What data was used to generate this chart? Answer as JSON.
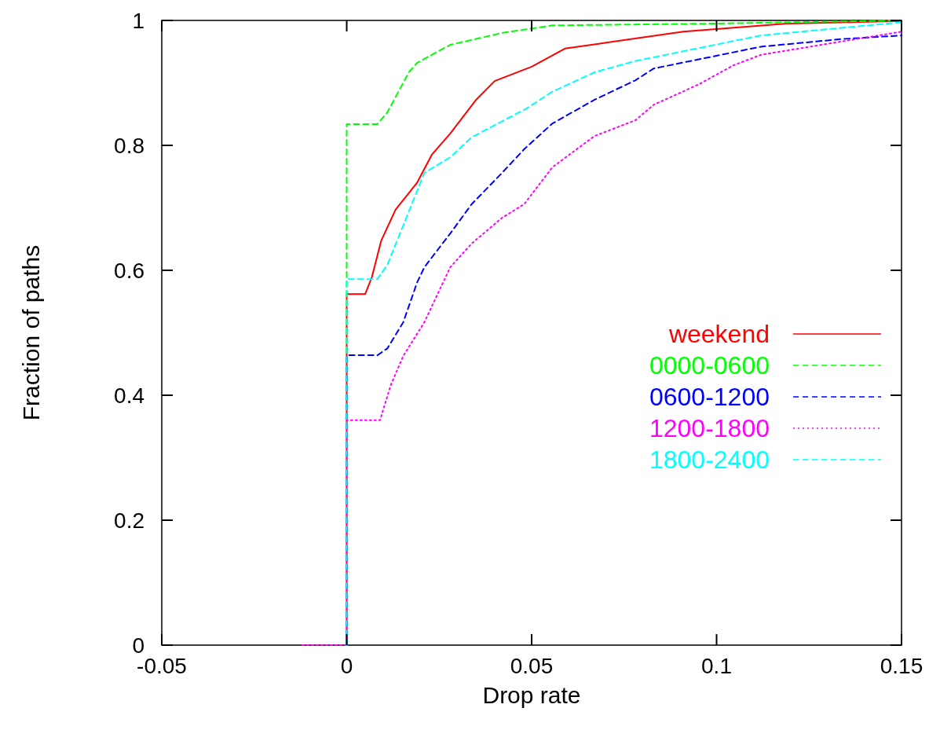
{
  "chart_data": {
    "type": "line",
    "xlabel": "Drop rate",
    "ylabel": "Fraction of paths",
    "xlim": [
      -0.05,
      0.15
    ],
    "xticks": [
      -0.05,
      0,
      0.05,
      0.1,
      0.15
    ],
    "ylim": [
      0,
      1
    ],
    "yticks": [
      0,
      0.2,
      0.4,
      0.6,
      0.8,
      1
    ],
    "grid": false,
    "legend": "right",
    "marker": "none",
    "series": [
      {
        "name": "weekend",
        "color": "#ff0000",
        "line_style": "solid",
        "x": [
          0,
          0,
          0.005,
          0.0068,
          0.0093,
          0.0132,
          0.019,
          0.023,
          0.028,
          0.035,
          0.04,
          0.05,
          0.059,
          0.072,
          0.091,
          0.119,
          0.15
        ],
        "values": [
          0,
          0.562,
          0.562,
          0.589,
          0.647,
          0.697,
          0.74,
          0.785,
          0.819,
          0.873,
          0.903,
          0.926,
          0.955,
          0.966,
          0.982,
          0.995,
          0.999
        ]
      },
      {
        "name": "0000-0600",
        "color": "#00ff00",
        "line_style": "dashed",
        "x": [
          0,
          0,
          0.0083,
          0.011,
          0.0168,
          0.019,
          0.028,
          0.042,
          0.0556,
          0.1,
          0.15
        ],
        "values": [
          0,
          0.834,
          0.834,
          0.853,
          0.917,
          0.932,
          0.961,
          0.98,
          0.992,
          0.995,
          1
        ]
      },
      {
        "name": "0600-1200",
        "color": "#0000ff",
        "line_style": "dashed",
        "x": [
          0,
          0,
          0.0083,
          0.011,
          0.0153,
          0.019,
          0.021,
          0.028,
          0.0338,
          0.042,
          0.048,
          0.0556,
          0.067,
          0.078,
          0.083,
          0.112,
          0.1335,
          0.15
        ],
        "values": [
          0,
          0.464,
          0.464,
          0.475,
          0.517,
          0.58,
          0.605,
          0.659,
          0.706,
          0.756,
          0.794,
          0.835,
          0.873,
          0.904,
          0.923,
          0.958,
          0.97,
          0.976
        ]
      },
      {
        "name": "1200-1800",
        "color": "#ff00ff",
        "line_style": "dotted",
        "x": [
          -0.012,
          0,
          0,
          0.009,
          0.0119,
          0.0153,
          0.021,
          0.028,
          0.0338,
          0.042,
          0.048,
          0.0556,
          0.067,
          0.078,
          0.083,
          0.0953,
          0.1045,
          0.112,
          0.1335,
          0.15
        ],
        "values": [
          0,
          0,
          0.36,
          0.36,
          0.416,
          0.463,
          0.517,
          0.605,
          0.643,
          0.684,
          0.706,
          0.765,
          0.815,
          0.84,
          0.865,
          0.898,
          0.928,
          0.945,
          0.966,
          0.982
        ]
      },
      {
        "name": "1800-2400",
        "color": "#00ffff",
        "line_style": "dashed",
        "x": [
          0,
          0,
          0.0083,
          0.011,
          0.0153,
          0.021,
          0.028,
          0.0338,
          0.0486,
          0.0556,
          0.067,
          0.078,
          0.083,
          0.112,
          0.15
        ],
        "values": [
          0,
          0.586,
          0.586,
          0.609,
          0.672,
          0.756,
          0.781,
          0.813,
          0.859,
          0.886,
          0.917,
          0.935,
          0.941,
          0.976,
          0.997
        ]
      }
    ]
  }
}
